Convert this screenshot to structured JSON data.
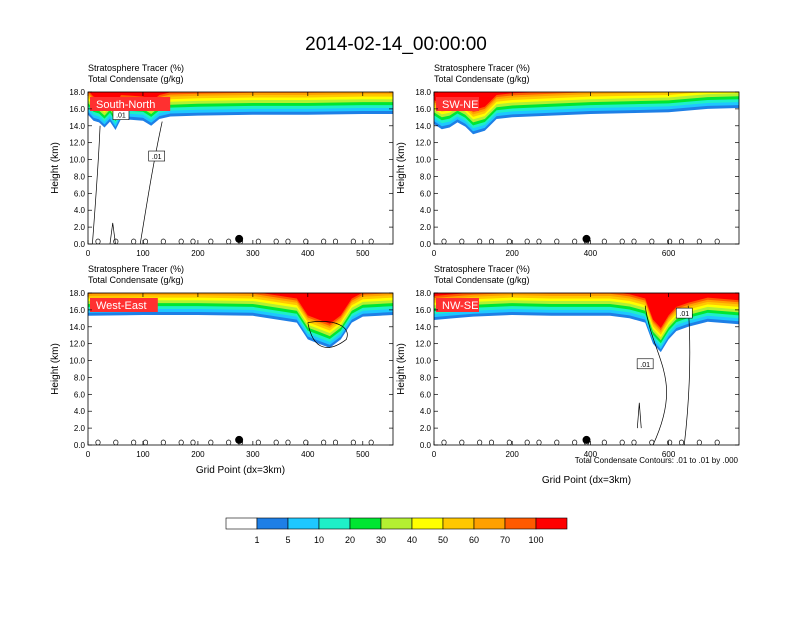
{
  "page_title": "2014-02-14_00:00:00",
  "colors": {
    "bins": [
      "#ffffff",
      "#1e7fe6",
      "#1ec8ff",
      "#1ef0c8",
      "#00e632",
      "#b4f032",
      "#ffff00",
      "#ffc800",
      "#ffa000",
      "#ff5a00",
      "#ff0000"
    ],
    "label_bg": "#ff3030"
  },
  "colorbar": {
    "labels": [
      "1",
      "5",
      "10",
      "20",
      "30",
      "40",
      "50",
      "60",
      "70",
      "100"
    ]
  },
  "footnote": "Total Condensate Contours: .01 to .01 by .000",
  "chart_data": [
    {
      "type": "heatmap",
      "section_label": "South-North",
      "title_line1": "Stratosphere Tracer    (%)",
      "title_line2": "Total Condensate    (g/kg)",
      "ylabel": "Height (km)",
      "xlabel": "",
      "xlim": [
        0,
        555
      ],
      "ylim": [
        0,
        18
      ],
      "xticks": [
        0,
        100,
        200,
        300,
        400,
        500
      ],
      "yticks": [
        "0.0",
        "2.0",
        "4.0",
        "6.0",
        "8.0",
        "10.0",
        "12.0",
        "14.0",
        "16.0",
        "18.0"
      ],
      "contour_labels": [
        ".01",
        ".01"
      ],
      "marker_x": 275,
      "marker_y": 0.6,
      "tracer_base_km": [
        [
          0,
          15.3
        ],
        [
          10,
          14.6
        ],
        [
          20,
          14.4
        ],
        [
          30,
          13.8
        ],
        [
          40,
          14.5
        ],
        [
          50,
          13.5
        ],
        [
          60,
          14.8
        ],
        [
          80,
          14.7
        ],
        [
          100,
          14.6
        ],
        [
          115,
          14.0
        ],
        [
          130,
          14.8
        ],
        [
          150,
          15.1
        ],
        [
          200,
          15.2
        ],
        [
          300,
          15.3
        ],
        [
          400,
          15.3
        ],
        [
          500,
          15.4
        ],
        [
          555,
          15.4
        ]
      ]
    },
    {
      "type": "heatmap",
      "section_label": "SW-NE",
      "title_line1": "Stratosphere Tracer    (%)",
      "title_line2": "Total Condensate    (g/kg)",
      "ylabel": "Height (km)",
      "xlabel": "",
      "xlim": [
        0,
        780
      ],
      "ylim": [
        0,
        18
      ],
      "xticks": [
        0,
        200,
        400,
        600
      ],
      "yticks": [
        "0.0",
        "2.0",
        "4.0",
        "6.0",
        "8.0",
        "10.0",
        "12.0",
        "14.0",
        "16.0",
        "18.0"
      ],
      "contour_labels": [],
      "marker_x": 390,
      "marker_y": 0.6,
      "tracer_base_km": [
        [
          0,
          14.2
        ],
        [
          20,
          13.6
        ],
        [
          40,
          13.8
        ],
        [
          60,
          14.4
        ],
        [
          80,
          13.9
        ],
        [
          100,
          13.0
        ],
        [
          130,
          13.4
        ],
        [
          160,
          14.8
        ],
        [
          200,
          15.0
        ],
        [
          300,
          15.2
        ],
        [
          400,
          15.4
        ],
        [
          500,
          15.5
        ],
        [
          600,
          15.6
        ],
        [
          700,
          16.0
        ],
        [
          780,
          16.1
        ]
      ]
    },
    {
      "type": "heatmap",
      "section_label": "West-East",
      "title_line1": "Stratosphere Tracer    (%)",
      "title_line2": "Total Condensate    (g/kg)",
      "ylabel": "Height (km)",
      "xlabel": "Grid Point (dx=3km)",
      "xlim": [
        0,
        555
      ],
      "ylim": [
        0,
        18
      ],
      "xticks": [
        0,
        100,
        200,
        300,
        400,
        500
      ],
      "yticks": [
        "0.0",
        "2.0",
        "4.0",
        "6.0",
        "8.0",
        "10.0",
        "12.0",
        "14.0",
        "16.0",
        "18.0"
      ],
      "contour_labels": [],
      "marker_x": 275,
      "marker_y": 0.6,
      "tracer_base_km": [
        [
          0,
          15.3
        ],
        [
          100,
          15.4
        ],
        [
          200,
          15.4
        ],
        [
          300,
          15.3
        ],
        [
          380,
          14.5
        ],
        [
          400,
          12.5
        ],
        [
          420,
          12.0
        ],
        [
          440,
          11.5
        ],
        [
          460,
          12.5
        ],
        [
          480,
          14.5
        ],
        [
          500,
          15.2
        ],
        [
          555,
          15.4
        ]
      ]
    },
    {
      "type": "heatmap",
      "section_label": "NW-SE",
      "title_line1": "Stratosphere Tracer    (%)",
      "title_line2": "Total Condensate    (g/kg)",
      "ylabel": "Height (km)",
      "xlabel": "Grid Point (dx=3km)",
      "xlim": [
        0,
        780
      ],
      "ylim": [
        0,
        18
      ],
      "xticks": [
        0,
        200,
        400,
        600
      ],
      "yticks": [
        "0.0",
        "2.0",
        "4.0",
        "6.0",
        "8.0",
        "10.0",
        "12.0",
        "14.0",
        "16.0",
        "18.0"
      ],
      "contour_labels": [
        ".01",
        ".01"
      ],
      "marker_x": 390,
      "marker_y": 0.6,
      "tracer_base_km": [
        [
          0,
          14.8
        ],
        [
          50,
          15.0
        ],
        [
          100,
          15.2
        ],
        [
          200,
          15.4
        ],
        [
          300,
          15.3
        ],
        [
          450,
          15.3
        ],
        [
          500,
          15.0
        ],
        [
          540,
          14.5
        ],
        [
          560,
          12.0
        ],
        [
          580,
          11.0
        ],
        [
          600,
          12.5
        ],
        [
          620,
          13.5
        ],
        [
          650,
          14.0
        ],
        [
          700,
          14.6
        ],
        [
          780,
          14.3
        ]
      ]
    }
  ]
}
